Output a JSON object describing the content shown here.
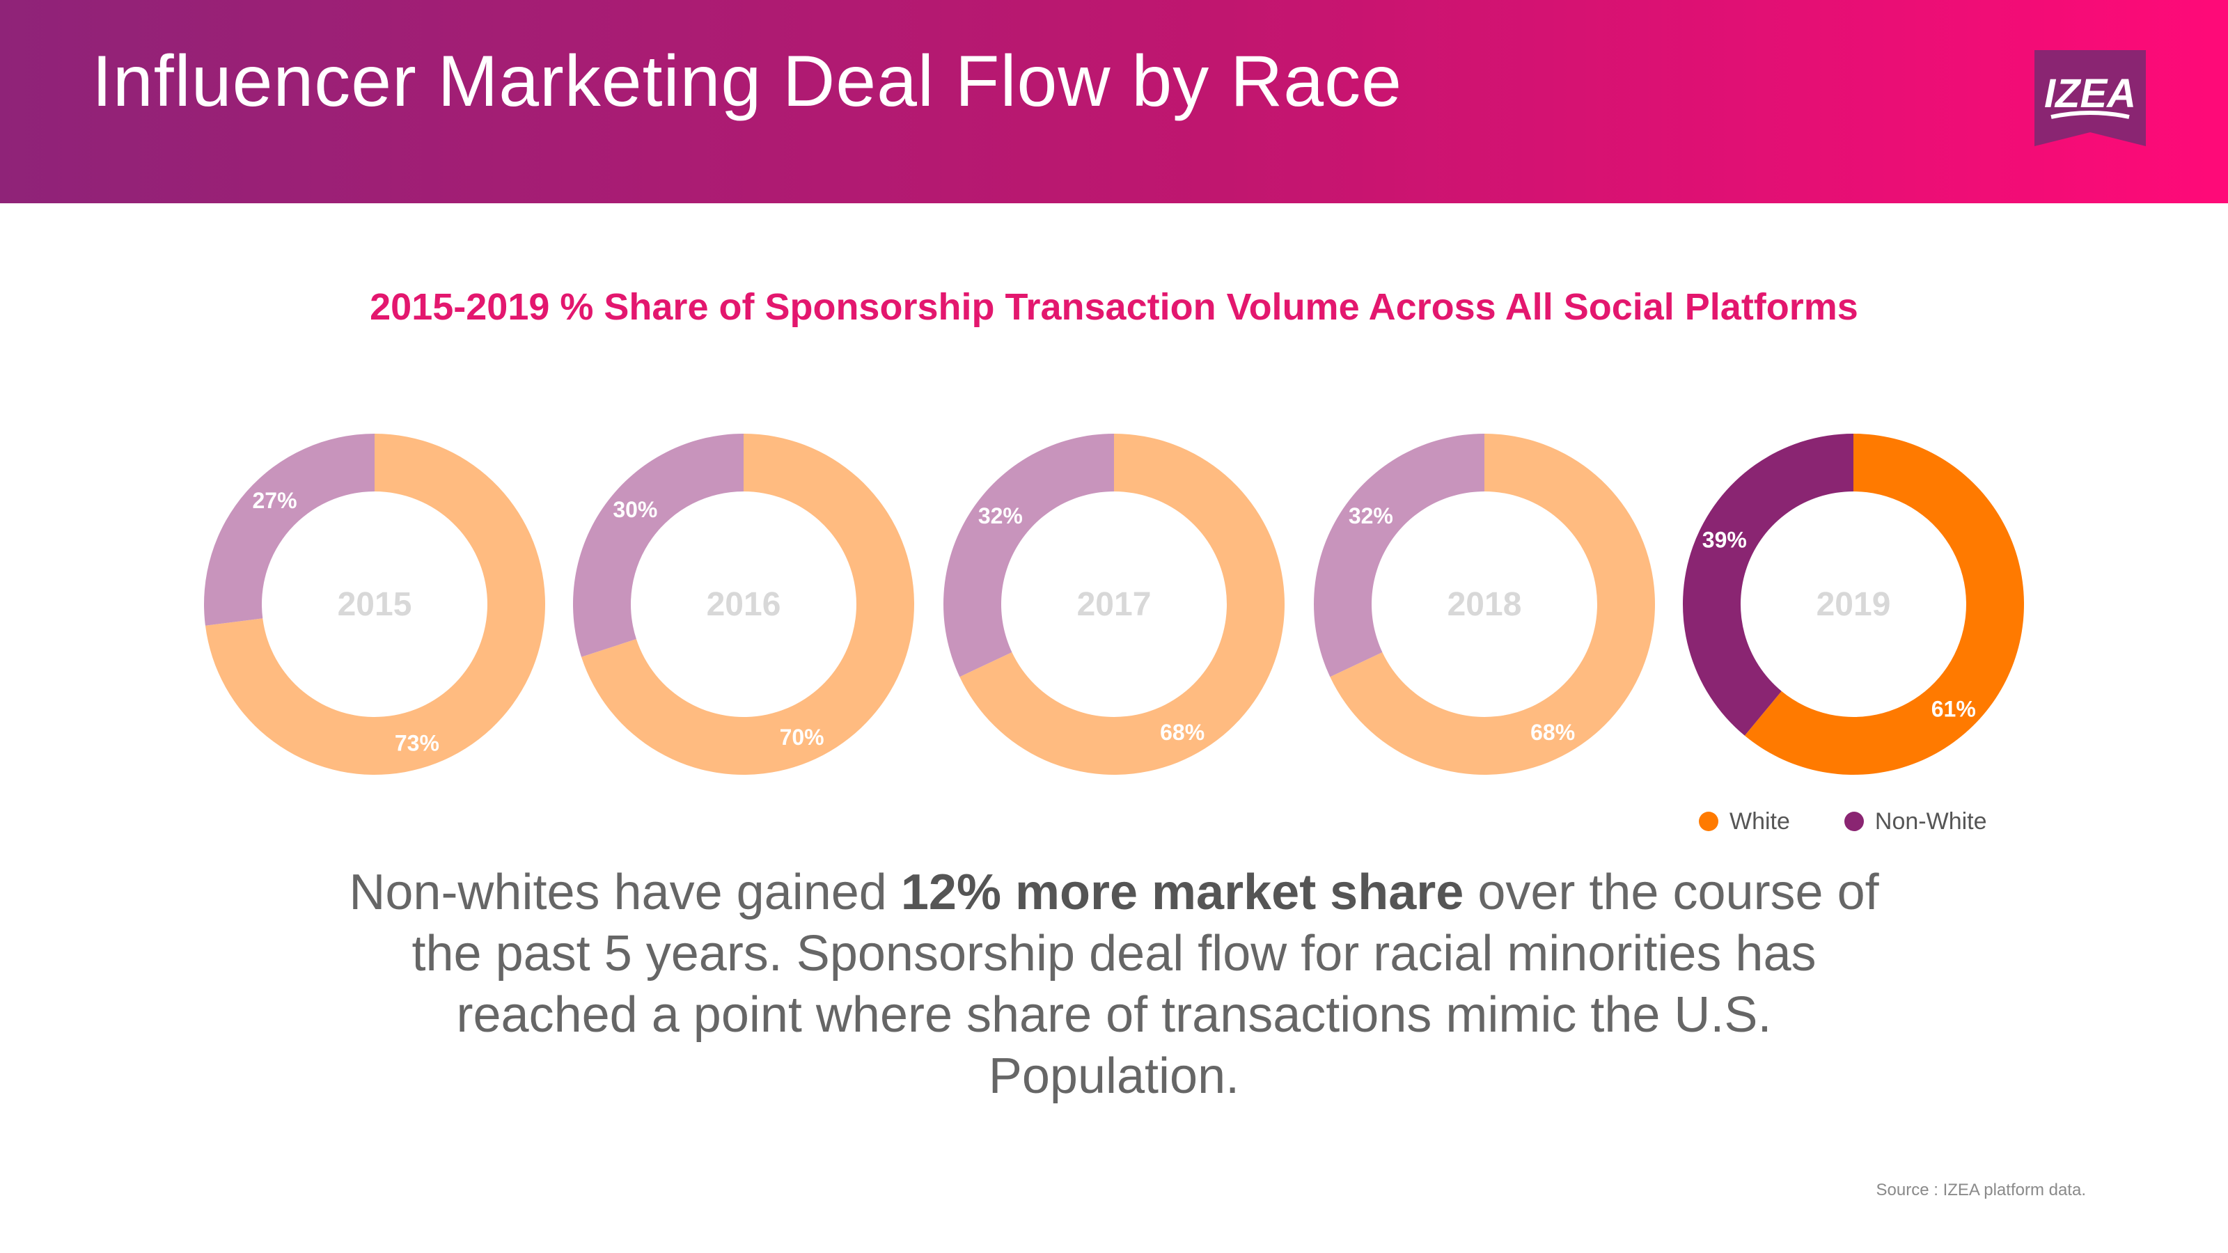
{
  "header": {
    "title": "Influencer Marketing Deal Flow by Race",
    "logo_text": "IZEA"
  },
  "colors": {
    "header_gradient": [
      "#8f2378",
      "#ff0a78"
    ],
    "subtitle": "#e3176e",
    "white_light": "#ffbb80",
    "nonwhite_light": "#c894bc",
    "white_strong": "#ff7a00",
    "nonwhite_strong": "#8a2572",
    "center_year_text": "#d8d8d8"
  },
  "chart_data": {
    "type": "pie",
    "title": "2015-2019 % Share of Sponsorship Transaction Volume Across All Social Platforms",
    "series_names": [
      "White",
      "Non-White"
    ],
    "donuts": [
      {
        "year": "2015",
        "white": 73,
        "non_white": 27,
        "white_label": "73%",
        "non_white_label": "27%",
        "highlight": false
      },
      {
        "year": "2016",
        "white": 70,
        "non_white": 30,
        "white_label": "70%",
        "non_white_label": "30%",
        "highlight": false
      },
      {
        "year": "2017",
        "white": 68,
        "non_white": 32,
        "white_label": "68%",
        "non_white_label": "32%",
        "highlight": false
      },
      {
        "year": "2018",
        "white": 68,
        "non_white": 32,
        "white_label": "68%",
        "non_white_label": "32%",
        "highlight": false
      },
      {
        "year": "2019",
        "white": 61,
        "non_white": 39,
        "white_label": "61%",
        "non_white_label": "39%",
        "highlight": true
      }
    ],
    "legend": [
      "White",
      "Non-White"
    ],
    "legend_placement": "bottom-right"
  },
  "body": {
    "pre": "Non-whites have gained ",
    "bold": "12% more market share",
    "post": " over the course of the past 5 years. Sponsorship deal flow for racial minorities has reached a point where share of transactions mimic the U.S. Population."
  },
  "source": "Source : IZEA platform data."
}
